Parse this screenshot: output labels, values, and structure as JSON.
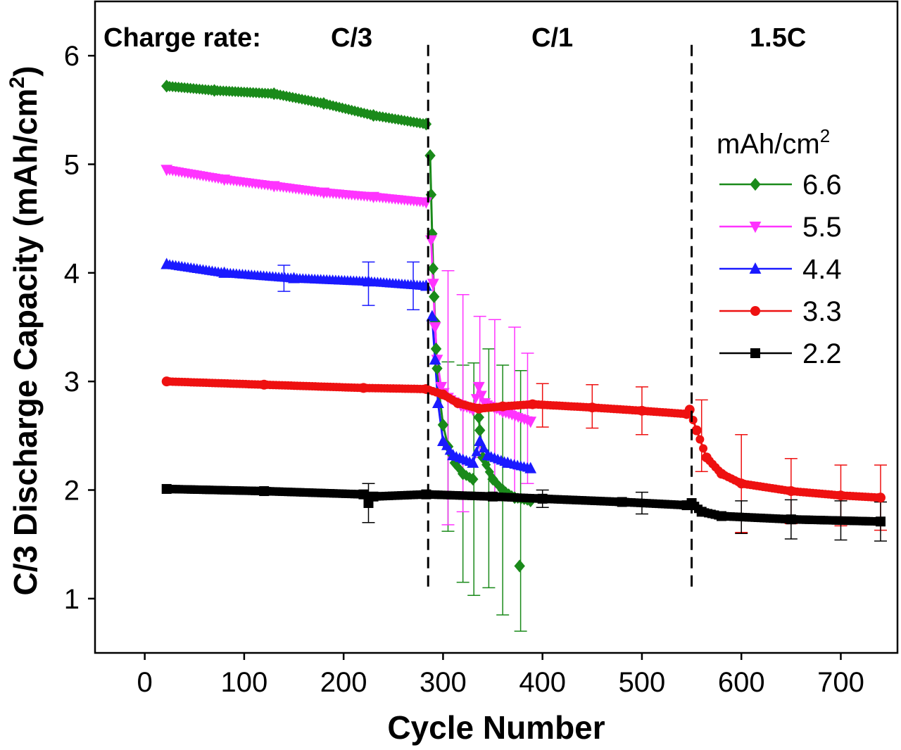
{
  "chart_data": {
    "type": "line",
    "xlabel": "Cycle Number",
    "ylabel": "C/3 Discharge Capacity (mAh/cm",
    "ylabel_sup": "2",
    "ylabel_close": ")",
    "xlim": [
      -50,
      757
    ],
    "ylim": [
      0.5,
      6.5
    ],
    "xticks": [
      "0",
      "100",
      "200",
      "300",
      "400",
      "500",
      "600",
      "700"
    ],
    "yticks": [
      "1",
      "2",
      "3",
      "4",
      "5",
      "6"
    ],
    "grid": false,
    "legend_position": "right",
    "legend_title": "mAh/cm",
    "legend_title_sup": "2",
    "annotations": {
      "charge_rate_label": "Charge rate:",
      "rates": [
        "C/3",
        "C/1",
        "1.5C"
      ]
    },
    "rate_change_cycles": [
      285,
      550
    ],
    "series": [
      {
        "name": "6.6",
        "color": "#1a8a1a",
        "marker": "diamond",
        "segments": [
          [
            [
              22,
              5.72
            ],
            [
              70,
              5.68
            ],
            [
              130,
              5.65
            ],
            [
              180,
              5.56
            ],
            [
              230,
              5.45
            ],
            [
              283,
              5.37
            ]
          ],
          [
            [
              287,
              5.08
            ],
            [
              288,
              4.72
            ],
            [
              289,
              4.36
            ],
            [
              290,
              4.04
            ],
            [
              291,
              3.78
            ],
            [
              292,
              3.55
            ],
            [
              293,
              3.3
            ],
            [
              294,
              3.12
            ],
            [
              296,
              2.9
            ],
            [
              300,
              2.6
            ],
            [
              305,
              2.4
            ],
            [
              312,
              2.25
            ],
            [
              320,
              2.15
            ],
            [
              330,
              2.1
            ]
          ],
          [
            [
              336,
              2.67
            ],
            [
              337,
              2.55
            ],
            [
              340,
              2.3
            ],
            [
              350,
              2.1
            ],
            [
              360,
              2.0
            ],
            [
              372,
              1.93
            ],
            [
              388,
              1.9
            ]
          ],
          [
            [
              377,
              1.3
            ]
          ]
        ],
        "errors": [
          [
            305,
            2.4,
            0.78
          ],
          [
            320,
            2.15,
            1.0
          ],
          [
            331,
            2.1,
            1.07
          ],
          [
            346,
            2.2,
            1.1
          ],
          [
            360,
            2.0,
            1.15
          ],
          [
            378,
            1.9,
            1.2
          ]
        ]
      },
      {
        "name": "5.5",
        "color": "#ff33ff",
        "marker": "triangle-down",
        "segments": [
          [
            [
              22,
              4.95
            ],
            [
              80,
              4.86
            ],
            [
              130,
              4.8
            ],
            [
              180,
              4.74
            ],
            [
              230,
              4.7
            ],
            [
              283,
              4.65
            ]
          ],
          [
            [
              288,
              4.3
            ],
            [
              290,
              3.9
            ],
            [
              292,
              3.5
            ],
            [
              294,
              3.2
            ],
            [
              298,
              2.95
            ],
            [
              305,
              2.85
            ],
            [
              318,
              2.78
            ],
            [
              330,
              2.74
            ],
            [
              336,
              2.95
            ],
            [
              342,
              2.8
            ],
            [
              360,
              2.72
            ],
            [
              388,
              2.63
            ]
          ]
        ],
        "errors": [
          [
            305,
            2.85,
            1.17
          ],
          [
            320,
            2.8,
            1.0
          ],
          [
            337,
            2.95,
            0.65
          ],
          [
            352,
            2.75,
            0.82
          ],
          [
            372,
            2.7,
            0.8
          ],
          [
            385,
            2.66,
            0.6
          ]
        ]
      },
      {
        "name": "4.4",
        "color": "#1a1aff",
        "marker": "triangle-up",
        "segments": [
          [
            [
              22,
              4.08
            ],
            [
              80,
              4.0
            ],
            [
              150,
              3.95
            ],
            [
              225,
              3.92
            ],
            [
              283,
              3.88
            ]
          ],
          [
            [
              289,
              3.6
            ],
            [
              292,
              3.2
            ],
            [
              295,
              2.8
            ],
            [
              300,
              2.45
            ],
            [
              310,
              2.32
            ],
            [
              330,
              2.25
            ],
            [
              337,
              2.45
            ],
            [
              345,
              2.32
            ],
            [
              365,
              2.25
            ],
            [
              388,
              2.2
            ]
          ]
        ],
        "errors": [
          [
            140,
            3.95,
            0.12
          ],
          [
            225,
            3.9,
            0.2
          ],
          [
            270,
            3.88,
            0.22
          ]
        ]
      },
      {
        "name": "3.3",
        "color": "#ee1111",
        "marker": "circle",
        "segments": [
          [
            [
              22,
              3.0
            ],
            [
              120,
              2.97
            ],
            [
              220,
              2.94
            ],
            [
              283,
              2.93
            ],
            [
              300,
              2.88
            ],
            [
              315,
              2.8
            ],
            [
              336,
              2.75
            ],
            [
              360,
              2.77
            ],
            [
              390,
              2.79
            ],
            [
              450,
              2.76
            ],
            [
              500,
              2.73
            ],
            [
              545,
              2.7
            ],
            [
              548,
              2.74
            ],
            [
              555,
              2.55
            ],
            [
              565,
              2.3
            ],
            [
              580,
              2.15
            ],
            [
              600,
              2.06
            ],
            [
              650,
              1.99
            ],
            [
              700,
              1.95
            ],
            [
              740,
              1.93
            ]
          ]
        ],
        "errors": [
          [
            400,
            2.78,
            0.2
          ],
          [
            450,
            2.77,
            0.2
          ],
          [
            500,
            2.73,
            0.22
          ],
          [
            560,
            2.5,
            0.33
          ],
          [
            600,
            2.06,
            0.45
          ],
          [
            650,
            1.99,
            0.3
          ],
          [
            700,
            1.95,
            0.28
          ],
          [
            740,
            1.93,
            0.3
          ]
        ]
      },
      {
        "name": "2.2",
        "color": "#000000",
        "marker": "square",
        "segments": [
          [
            [
              22,
              2.01
            ],
            [
              120,
              1.99
            ],
            [
              220,
              1.96
            ],
            [
              225,
              1.88
            ],
            [
              230,
              1.94
            ],
            [
              283,
              1.96
            ],
            [
              350,
              1.94
            ],
            [
              400,
              1.92
            ],
            [
              480,
              1.89
            ],
            [
              545,
              1.86
            ],
            [
              550,
              1.88
            ],
            [
              560,
              1.8
            ],
            [
              580,
              1.76
            ],
            [
              650,
              1.73
            ],
            [
              740,
              1.71
            ]
          ]
        ],
        "errors": [
          [
            225,
            1.88,
            0.18
          ],
          [
            400,
            1.92,
            0.08
          ],
          [
            500,
            1.88,
            0.1
          ],
          [
            600,
            1.75,
            0.15
          ],
          [
            650,
            1.73,
            0.18
          ],
          [
            700,
            1.72,
            0.18
          ],
          [
            740,
            1.71,
            0.18
          ]
        ]
      }
    ]
  }
}
